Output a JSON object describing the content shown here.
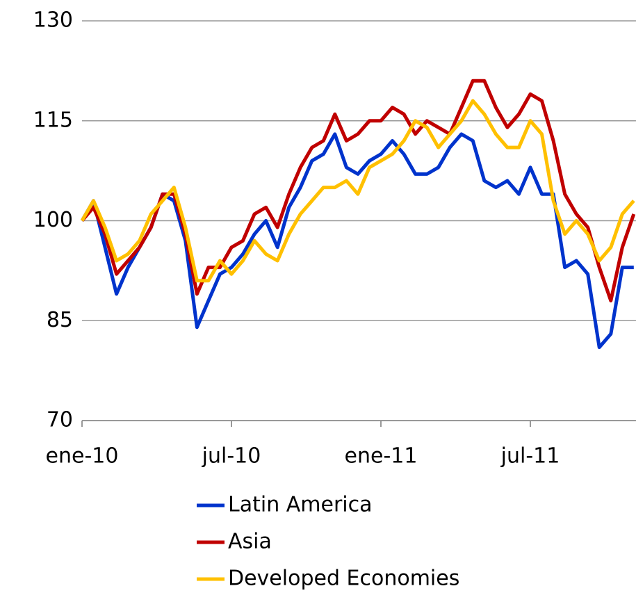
{
  "chart_data": {
    "type": "line",
    "categories": [
      "ene-10",
      null,
      null,
      null,
      null,
      null,
      null,
      null,
      null,
      null,
      null,
      null,
      null,
      "jul-10",
      null,
      null,
      null,
      null,
      null,
      null,
      null,
      null,
      null,
      null,
      null,
      null,
      "ene-11",
      null,
      null,
      null,
      null,
      null,
      null,
      null,
      null,
      null,
      null,
      null,
      null,
      "jul-11",
      null,
      null,
      null,
      null,
      null,
      null,
      null,
      null,
      null
    ],
    "series": [
      {
        "name": "Latin America",
        "color": "#0033cc",
        "values": [
          100,
          103,
          96,
          89,
          93,
          96,
          99,
          104,
          103,
          97,
          84,
          88,
          92,
          93,
          95,
          98,
          100,
          96,
          102,
          105,
          109,
          110,
          113,
          108,
          107,
          109,
          110,
          112,
          110,
          107,
          107,
          108,
          111,
          113,
          112,
          106,
          105,
          106,
          104,
          108,
          104,
          104,
          93,
          94,
          92,
          81,
          83,
          93,
          93
        ]
      },
      {
        "name": "Asia",
        "color": "#c00000",
        "values": [
          100,
          102,
          98,
          92,
          94,
          96,
          99,
          104,
          104,
          98,
          89,
          93,
          93,
          96,
          97,
          101,
          102,
          99,
          104,
          108,
          111,
          112,
          116,
          112,
          113,
          115,
          115,
          117,
          116,
          113,
          115,
          114,
          113,
          117,
          121,
          121,
          117,
          114,
          116,
          119,
          118,
          112,
          104,
          101,
          99,
          93,
          88,
          96,
          101
        ]
      },
      {
        "name": "Developed Economies",
        "color": "#ffc000",
        "values": [
          100,
          103,
          99,
          94,
          95,
          97,
          101,
          103,
          105,
          99,
          91,
          91,
          94,
          92,
          94,
          97,
          95,
          94,
          98,
          101,
          103,
          105,
          105,
          106,
          104,
          108,
          109,
          110,
          112,
          115,
          114,
          111,
          113,
          115,
          118,
          116,
          113,
          111,
          111,
          115,
          113,
          103,
          98,
          100,
          98,
          94,
          96,
          101,
          103
        ]
      }
    ],
    "ylim": [
      70,
      130
    ],
    "yticks": [
      70,
      85,
      100,
      115,
      130
    ],
    "grid": true,
    "legend": "bottom"
  }
}
